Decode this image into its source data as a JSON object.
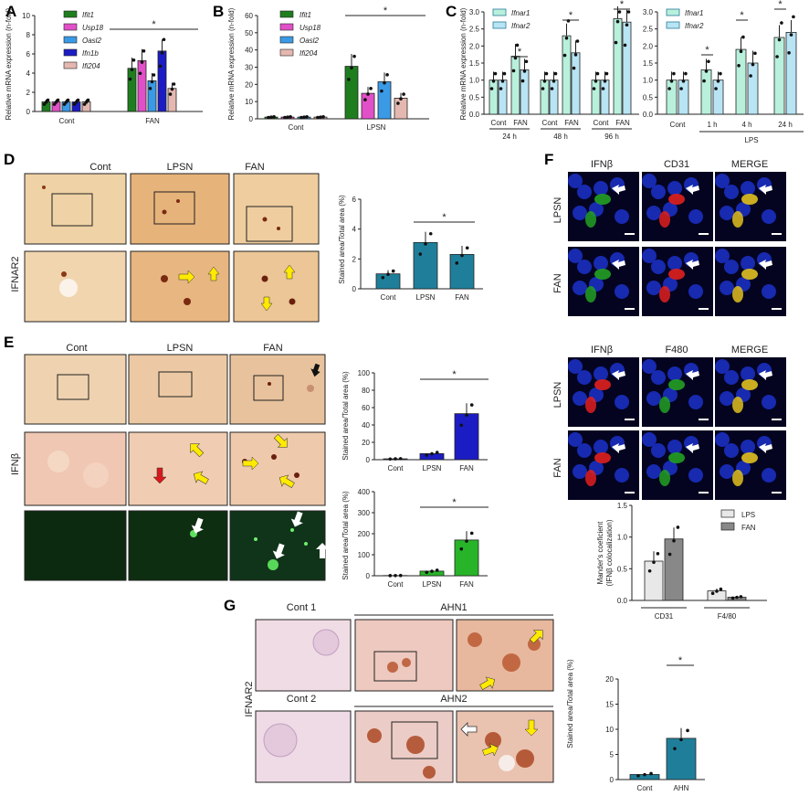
{
  "panels": {
    "A": {
      "label": "A"
    },
    "B": {
      "label": "B"
    },
    "C": {
      "label": "C"
    },
    "D": {
      "label": "D",
      "groups": [
        "Cont",
        "LPSN",
        "FAN"
      ],
      "row_label": "IFNAR2"
    },
    "E": {
      "label": "E",
      "groups": [
        "Cont",
        "LPSN",
        "FAN"
      ],
      "row_label": "IFNβ"
    },
    "F": {
      "label": "F",
      "top_channels": [
        "IFNβ",
        "CD31",
        "MERGE"
      ],
      "bottom_channels": [
        "IFNβ",
        "F480",
        "MERGE"
      ],
      "rows": [
        "LPSN",
        "FAN"
      ],
      "top_channel_colors": [
        "#23a023",
        "#e0201e",
        "#e0c020"
      ],
      "bottom_channel_colors": [
        "#e0201e",
        "#23a023",
        "#e0c020"
      ]
    },
    "G": {
      "label": "G",
      "row_label": "IFNAR2",
      "headers": [
        "Cont 1",
        "AHN1",
        "Cont 2",
        "AHN2"
      ]
    }
  },
  "sig": "*",
  "chart_data": [
    {
      "id": "A",
      "type": "bar",
      "ylabel": "Relative mRNA expression (n-fold)",
      "categories": [
        "Cont",
        "FAN"
      ],
      "ylim": [
        0,
        10
      ],
      "yticks": [
        0,
        2,
        4,
        6,
        8,
        10
      ],
      "series": [
        {
          "name": "Ifit1",
          "color": "#1e7e1e",
          "values": [
            1.0,
            4.5
          ]
        },
        {
          "name": "Usp18",
          "color": "#e250c8",
          "values": [
            1.0,
            5.3
          ]
        },
        {
          "name": "Oasl2",
          "color": "#3a9ae6",
          "values": [
            1.0,
            3.2
          ]
        },
        {
          "name": "Ifn1b",
          "color": "#1c1cc4",
          "values": [
            1.0,
            6.3
          ]
        },
        {
          "name": "Ifi204",
          "color": "#e4b8b0",
          "values": [
            1.0,
            2.4
          ]
        }
      ]
    },
    {
      "id": "B",
      "type": "bar",
      "ylabel": "Relative mRNA expression (n-fold)",
      "categories": [
        "Cont",
        "LPSN"
      ],
      "ylim": [
        0,
        60
      ],
      "yticks": [
        0,
        10,
        20,
        30,
        40,
        50,
        60
      ],
      "series": [
        {
          "name": "Ifit1",
          "color": "#1e7e1e",
          "values": [
            1.0,
            30.5
          ]
        },
        {
          "name": "Usp18",
          "color": "#e250c8",
          "values": [
            1.0,
            14.8
          ]
        },
        {
          "name": "Oasl2",
          "color": "#3a9ae6",
          "values": [
            1.0,
            21.5
          ]
        },
        {
          "name": "Ifi204",
          "color": "#e4b8b0",
          "values": [
            1.0,
            12.0
          ]
        }
      ]
    },
    {
      "id": "C1",
      "type": "bar",
      "ylabel": "Relative mRNA expression (n-fold)",
      "categories": [
        "Cont",
        "FAN",
        "Cont",
        "FAN",
        "Cont",
        "FAN"
      ],
      "group_labels": [
        "24 h",
        "48 h",
        "96 h"
      ],
      "ylim": [
        0,
        3
      ],
      "yticks": [
        0.0,
        0.5,
        1.0,
        1.5,
        2.0,
        2.5,
        3.0
      ],
      "series": [
        {
          "name": "Ifnar1",
          "color": "#b8f0dc",
          "values": [
            1.0,
            1.7,
            1.0,
            2.3,
            1.0,
            2.8
          ]
        },
        {
          "name": "Ifnar2",
          "color": "#b8e4f4",
          "values": [
            1.0,
            1.3,
            1.0,
            1.8,
            1.0,
            2.7
          ]
        }
      ]
    },
    {
      "id": "C2",
      "type": "bar",
      "categories": [
        "Cont",
        "1 h",
        "4 h",
        "24 h"
      ],
      "group_label": "LPS",
      "ylim": [
        0,
        3
      ],
      "yticks": [
        0.0,
        0.5,
        1.0,
        1.5,
        2.0,
        2.5,
        3.0
      ],
      "series": [
        {
          "name": "Ifnar1",
          "color": "#b8f0dc",
          "values": [
            1.0,
            1.3,
            1.9,
            2.25
          ]
        },
        {
          "name": "Ifnar2",
          "color": "#b8e4f4",
          "values": [
            1.0,
            1.0,
            1.5,
            2.4
          ]
        }
      ]
    },
    {
      "id": "D",
      "type": "bar",
      "ylabel": "Stained area/Total area (%)",
      "categories": [
        "Cont",
        "LPSN",
        "FAN"
      ],
      "values": [
        1.0,
        3.1,
        2.3
      ],
      "color": "#1f7f9a",
      "ylim": [
        0,
        6
      ],
      "yticks": [
        0,
        2,
        4,
        6
      ]
    },
    {
      "id": "E1",
      "type": "bar",
      "ylabel": "Stained area/Total area (%)",
      "categories": [
        "Cont",
        "LPSN",
        "FAN"
      ],
      "values": [
        1.0,
        7.0,
        53.0
      ],
      "colors": [
        "#1c1cc4",
        "#1c1cc4",
        "#1c1cc4"
      ],
      "ylim": [
        0,
        100
      ],
      "yticks": [
        0,
        20,
        40,
        60,
        80,
        100
      ]
    },
    {
      "id": "E2",
      "type": "bar",
      "ylabel": "Stained area/Total area (%)",
      "categories": [
        "Cont",
        "LPSN",
        "FAN"
      ],
      "values": [
        1.0,
        22.0,
        170.0
      ],
      "colors": [
        "#28b428",
        "#28b428",
        "#28b428"
      ],
      "ylim": [
        0,
        400
      ],
      "yticks": [
        0,
        100,
        200,
        300,
        400
      ]
    },
    {
      "id": "F",
      "type": "bar",
      "ylabel": "Mander's coeficient (IFNβ colocalization)",
      "categories": [
        "CD31",
        "F4/80"
      ],
      "ylim": [
        0,
        1.5
      ],
      "yticks": [
        0.0,
        0.5,
        1.0,
        1.5
      ],
      "series": [
        {
          "name": "LPS",
          "color": "#e8e8e8",
          "values": [
            0.62,
            0.15
          ]
        },
        {
          "name": "FAN",
          "color": "#888888",
          "values": [
            0.97,
            0.05
          ]
        }
      ]
    },
    {
      "id": "G",
      "type": "bar",
      "ylabel": "Stained area/Total area (%)",
      "categories": [
        "Cont",
        "AHN"
      ],
      "values": [
        1.0,
        8.2
      ],
      "color": "#1f7f9a",
      "ylim": [
        0,
        20
      ],
      "yticks": [
        0,
        5,
        10,
        15,
        20
      ]
    }
  ]
}
